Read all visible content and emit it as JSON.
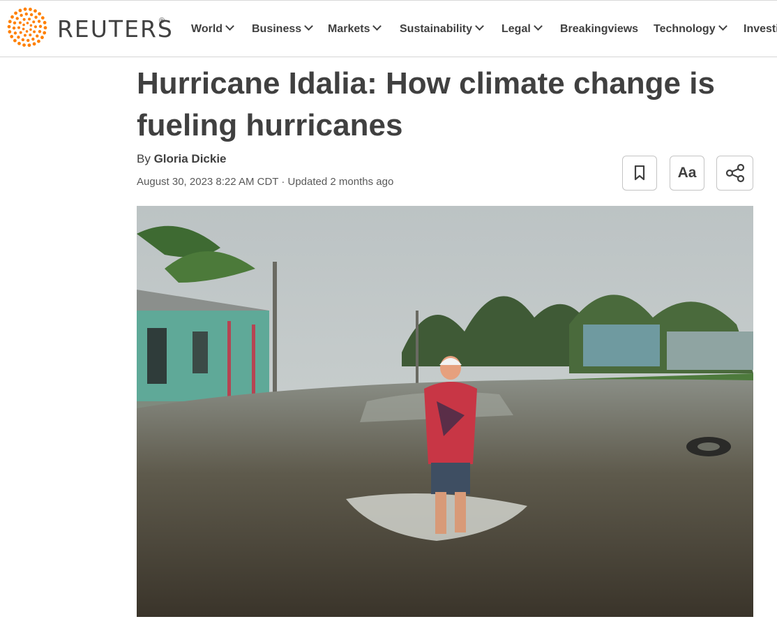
{
  "brand": {
    "name": "REUTERS",
    "registered": "®",
    "color": "#ff8000"
  },
  "nav": [
    {
      "label": "World",
      "dropdown": true
    },
    {
      "label": "Business",
      "dropdown": true
    },
    {
      "label": "Markets",
      "dropdown": true
    },
    {
      "label": "Sustainability",
      "dropdown": true
    },
    {
      "label": "Legal",
      "dropdown": true
    },
    {
      "label": "Breakingviews",
      "dropdown": false
    },
    {
      "label": "Technology",
      "dropdown": true
    },
    {
      "label": "Investi",
      "dropdown": false
    }
  ],
  "article": {
    "headline": "Hurricane Idalia: How climate change is fueling hurricanes",
    "by_prefix": "By",
    "author": "Gloria Dickie",
    "date": "August 30, 2023 8:22 AM CDT · Updated 2 months ago",
    "text_size_label": "Aa",
    "image_icons": [
      "bookmark-icon",
      "share-icon"
    ]
  }
}
